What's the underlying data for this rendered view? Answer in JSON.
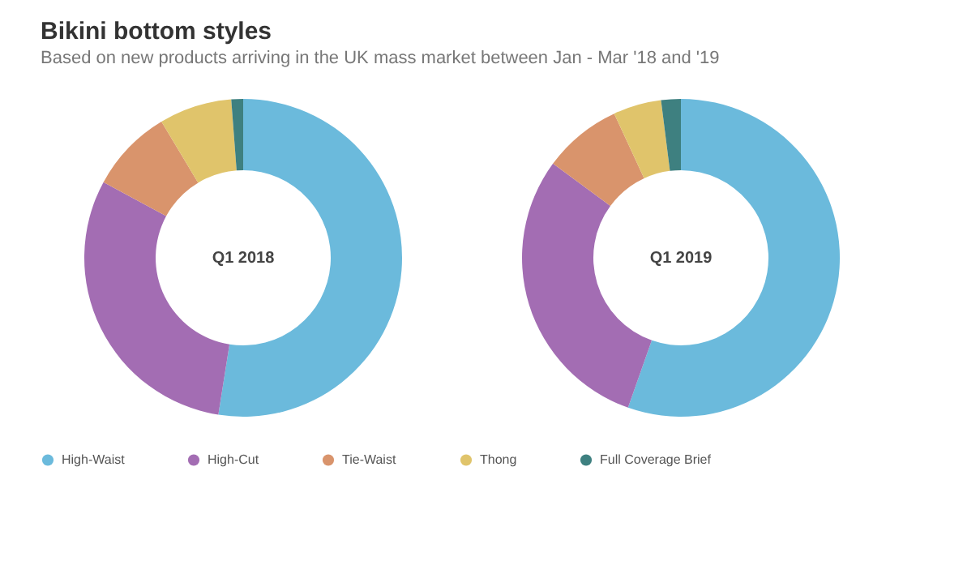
{
  "chart_data": {
    "type": "donut",
    "title": "Bikini bottom styles",
    "subtitle": "Based on new products arriving in the UK mass market between Jan - Mar '18 and '19",
    "legend": "bottom",
    "categories": [
      "High-Waist",
      "High-Cut",
      "Tie-Waist",
      "Thong",
      "Full Coverage Brief"
    ],
    "colors": [
      "#6bbadc",
      "#a36db3",
      "#d9946c",
      "#e0c46b",
      "#3e8080"
    ],
    "series": [
      {
        "name": "Q1 2018",
        "values": [
          52.5,
          30.4,
          8.5,
          7.4,
          1.2
        ]
      },
      {
        "name": "Q1 2019",
        "values": [
          55.4,
          29.7,
          8.0,
          4.9,
          2.0
        ]
      }
    ]
  }
}
